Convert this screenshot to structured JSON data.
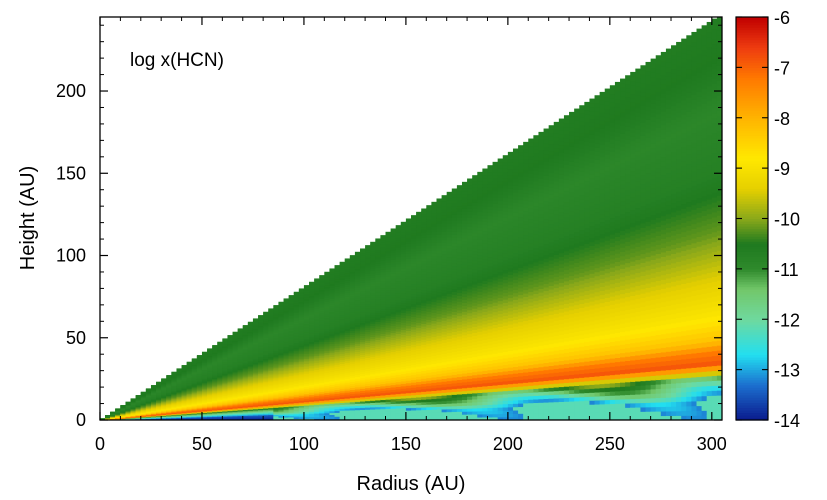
{
  "chart_data": {
    "type": "heatmap",
    "annotation": "log x(HCN)",
    "xlabel": "Radius (AU)",
    "ylabel": "Height (AU)",
    "xlim": [
      0,
      305
    ],
    "ylim": [
      0,
      245
    ],
    "xticks": [
      "0",
      "50",
      "100",
      "150",
      "200",
      "250",
      "300"
    ],
    "xtick_values": [
      0,
      50,
      100,
      150,
      200,
      250,
      300
    ],
    "yticks": [
      "0",
      "50",
      "100",
      "150",
      "200"
    ],
    "ytick_values": [
      0,
      50,
      100,
      150,
      200
    ],
    "colorbar": {
      "range": [
        -14,
        -6
      ],
      "ticks": [
        "-6",
        "-7",
        "-8",
        "-9",
        "-10",
        "-11",
        "-12",
        "-13",
        "-14"
      ],
      "tick_values": [
        -6,
        -7,
        -8,
        -9,
        -10,
        -11,
        -12,
        -13,
        -14
      ],
      "palette": [
        [
          -14,
          "#0a1a8c"
        ],
        [
          -13.3,
          "#1c6fcf"
        ],
        [
          -12.7,
          "#22dff0"
        ],
        [
          -12.0,
          "#6fd99e"
        ],
        [
          -11.4,
          "#72c76a"
        ],
        [
          -11.0,
          "#2f8a2c"
        ],
        [
          -10.5,
          "#1f7a1f"
        ],
        [
          -10.0,
          "#8aa81a"
        ],
        [
          -9.4,
          "#e6d000"
        ],
        [
          -8.8,
          "#ffe800"
        ],
        [
          -8.0,
          "#ffb400"
        ],
        [
          -7.2,
          "#ff7800"
        ],
        [
          -6.6,
          "#ee3b10"
        ],
        [
          -6.0,
          "#c00000"
        ]
      ]
    },
    "disk_surface_slope": 0.805,
    "abundance_profile_z_over_r": [
      [
        0.0,
        -14.0
      ],
      [
        0.035,
        -13.5
      ],
      [
        0.055,
        -12.3
      ],
      [
        0.07,
        -11.6
      ],
      [
        0.09,
        -10.5
      ],
      [
        0.1,
        -8.5
      ],
      [
        0.11,
        -6.8
      ],
      [
        0.135,
        -7.2
      ],
      [
        0.16,
        -8.2
      ],
      [
        0.21,
        -8.9
      ],
      [
        0.28,
        -9.4
      ],
      [
        0.38,
        -10.2
      ],
      [
        0.5,
        -10.7
      ],
      [
        0.62,
        -10.9
      ],
      [
        0.72,
        -10.5
      ],
      [
        0.805,
        -10.6
      ]
    ]
  }
}
